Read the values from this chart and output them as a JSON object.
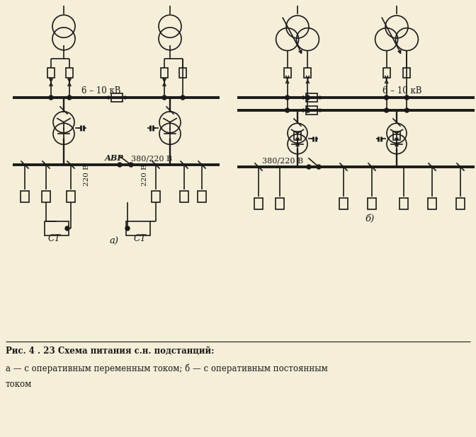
{
  "bg_color": "#f5eed8",
  "line_color": "#1a1a1a",
  "title_line1": "Рис. 4 . 23 Схема питания с.н. подстанций:",
  "title_line2": "а — с оперативным переменным током; б — с оперативным постоянным",
  "title_line3": "током",
  "label_a": "а)",
  "label_b": "б)",
  "label_6_10kv": "6 – 10 кВ",
  "label_380_a": "380/220 В",
  "label_380_b": "380/220 В",
  "label_avr": "АВР",
  "label_220_left": "220 В",
  "label_220_right": "220 В",
  "label_ct_left": "СТ",
  "label_ct_right": "СТ"
}
